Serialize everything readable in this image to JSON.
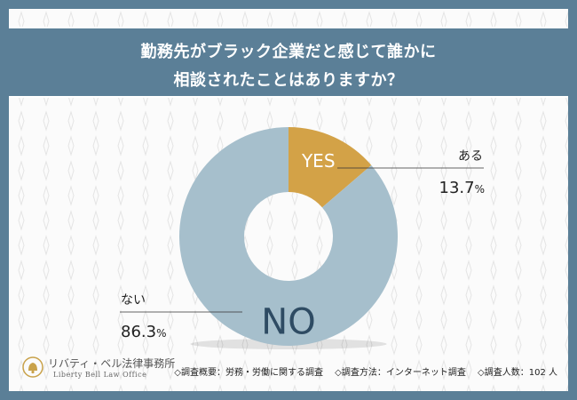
{
  "colors": {
    "frame": "#5b7f97",
    "no_slice": "#a6bfcc",
    "yes_slice": "#d3a247",
    "dark_text": "#2e4b63"
  },
  "title": {
    "line1": "勤務先がブラック企業だと感じて誰かに",
    "line2": "相談されたことはありますか？"
  },
  "chart_data": {
    "type": "pie",
    "title": "勤務先がブラック企業だと感じて誰かに相談されたことはありますか？",
    "slices": [
      {
        "name": "YES",
        "label": "ある",
        "value": 13.7,
        "value_text": "13.7",
        "unit": "%",
        "color": "#d3a247"
      },
      {
        "name": "NO",
        "label": "ない",
        "value": 86.3,
        "value_text": "86.3",
        "unit": "%",
        "color": "#a6bfcc"
      }
    ],
    "donut": true
  },
  "footer": {
    "notes": [
      "◇調査概要：労務・労働に関する調査",
      "◇調査方法：インターネット調査",
      "◇調査人数：102 人"
    ]
  },
  "logo": {
    "name": "リバティ・ベル法律事務所",
    "sub": "Liberty Bell Law Office",
    "icon": "bell-emblem-icon"
  }
}
